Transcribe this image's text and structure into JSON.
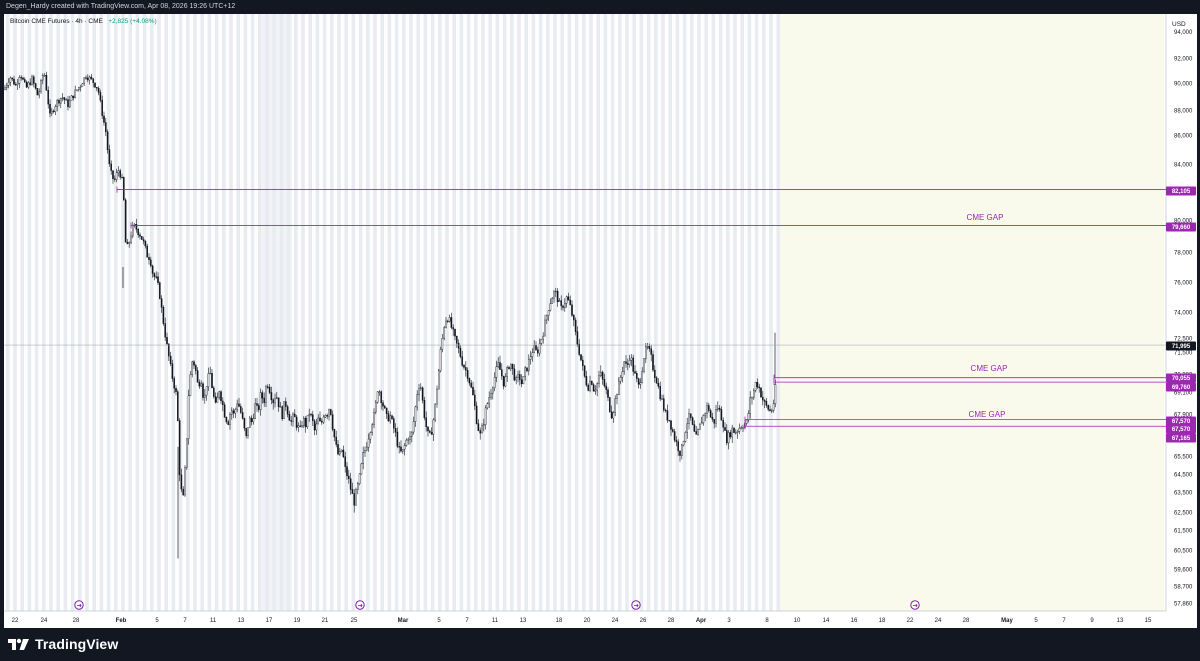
{
  "header": {
    "attribution": "Degen_Hardy created with TradingView.com, Apr 08, 2026 19:26 UTC+12"
  },
  "legend": {
    "symbol": "Bitcoin CME Futures · 4h · CME",
    "change": "+2,825 (+4.08%)"
  },
  "footer": {
    "brand": "TradingView",
    "logo_icon": "tradingview-logo-icon"
  },
  "colors": {
    "up": "#089981",
    "line": "#9c27b0",
    "label_bg": "#9c27b0",
    "label_text": "#ffffff",
    "price_label_bg": "#131722",
    "session_band": "#e8ebf0",
    "future_area": "#f9f9ec"
  },
  "chart_data": {
    "type": "candlestick",
    "title": "Bitcoin CME Futures · 4h · CME",
    "currency_label": "USD",
    "y_ticks": [
      "92,000",
      "90,000",
      "88,000",
      "86,000",
      "84,000",
      "82,000",
      "80,000",
      "78,000",
      "76,000",
      "74,000",
      "72,500",
      "71,500",
      "70,300",
      "69,100",
      "67,900",
      "66,700",
      "65,500",
      "64,500",
      "63,500",
      "62,500",
      "61,500",
      "60,500",
      "59,600",
      "58,700",
      "57,860"
    ],
    "y_top_partial_tick": "94,000",
    "x_ticks": [
      "22",
      "24",
      "28",
      "Feb",
      "5",
      "7",
      "11",
      "13",
      "17",
      "19",
      "21",
      "25",
      "Mar",
      "5",
      "7",
      "11",
      "13",
      "18",
      "20",
      "24",
      "26",
      "28",
      "Apr",
      "3",
      "8",
      "10",
      "14",
      "16",
      "18",
      "22",
      "24",
      "28",
      "May",
      "5",
      "7",
      "9",
      "13",
      "15"
    ],
    "current_price": "71,995",
    "levels": [
      {
        "price": "82,105",
        "start": "Jan 31"
      },
      {
        "price": "79,660",
        "start": "Feb 2"
      },
      {
        "price": "70,055",
        "start": "Apr 8"
      },
      {
        "price": "69,760",
        "start": "Apr 8"
      },
      {
        "price": "67,570",
        "start": "Apr 5"
      },
      {
        "price": "67,165",
        "start": "Apr 5"
      }
    ],
    "price_labels": [
      "82,105",
      "79,660",
      "71,995",
      "70,055",
      "69,760",
      "67,570",
      "67,570",
      "67,165"
    ],
    "annotations": [
      "CME GAP",
      "CME GAP",
      "CME GAP"
    ],
    "event_markers": 4,
    "price_path": [
      [
        0,
        89500
      ],
      [
        6,
        90500
      ],
      [
        12,
        89800
      ],
      [
        16,
        90800
      ],
      [
        22,
        89600
      ],
      [
        28,
        90300
      ],
      [
        34,
        89000
      ],
      [
        40,
        91000
      ],
      [
        46,
        87500
      ],
      [
        52,
        88500
      ],
      [
        58,
        89000
      ],
      [
        64,
        88400
      ],
      [
        70,
        89200
      ],
      [
        76,
        89800
      ],
      [
        82,
        90600
      ],
      [
        88,
        90200
      ],
      [
        94,
        89600
      ],
      [
        98,
        87800
      ],
      [
        102,
        86200
      ],
      [
        105,
        84000
      ],
      [
        108,
        83000
      ],
      [
        111,
        82800
      ],
      [
        114,
        83600
      ],
      [
        116,
        83300
      ],
      [
        119,
        82500
      ],
      [
        122,
        78000
      ],
      [
        125,
        78600
      ],
      [
        128,
        79400
      ],
      [
        131,
        79600
      ],
      [
        134,
        79300
      ],
      [
        137,
        79000
      ],
      [
        140,
        78500
      ],
      [
        143,
        77800
      ],
      [
        146,
        77600
      ],
      [
        149,
        76500
      ],
      [
        152,
        76200
      ],
      [
        155,
        75500
      ],
      [
        158,
        74000
      ],
      [
        161,
        72800
      ],
      [
        164,
        71500
      ],
      [
        167,
        70500
      ],
      [
        170,
        69600
      ],
      [
        173,
        68700
      ],
      [
        176,
        64000
      ],
      [
        179,
        63000
      ],
      [
        182,
        65500
      ],
      [
        185,
        69500
      ],
      [
        188,
        71000
      ],
      [
        191,
        70800
      ],
      [
        194,
        69500
      ],
      [
        197,
        70000
      ],
      [
        200,
        68500
      ],
      [
        203,
        69800
      ],
      [
        206,
        70400
      ],
      [
        209,
        69000
      ],
      [
        212,
        68200
      ],
      [
        215,
        69300
      ],
      [
        218,
        68600
      ],
      [
        221,
        67800
      ],
      [
        224,
        67400
      ],
      [
        227,
        68200
      ],
      [
        230,
        67800
      ],
      [
        233,
        68600
      ],
      [
        236,
        68200
      ],
      [
        239,
        67400
      ],
      [
        242,
        66400
      ],
      [
        245,
        67600
      ],
      [
        248,
        67400
      ],
      [
        251,
        68400
      ],
      [
        254,
        68000
      ],
      [
        257,
        69000
      ],
      [
        260,
        68600
      ],
      [
        263,
        69800
      ],
      [
        266,
        69200
      ],
      [
        269,
        68600
      ],
      [
        272,
        69000
      ],
      [
        275,
        68400
      ],
      [
        278,
        67800
      ],
      [
        281,
        68600
      ],
      [
        284,
        68000
      ],
      [
        287,
        67400
      ],
      [
        290,
        67800
      ],
      [
        293,
        67200
      ],
      [
        296,
        66900
      ],
      [
        299,
        67600
      ],
      [
        302,
        67200
      ],
      [
        305,
        68000
      ],
      [
        308,
        67600
      ],
      [
        311,
        66800
      ],
      [
        314,
        67600
      ],
      [
        317,
        67200
      ],
      [
        320,
        68000
      ],
      [
        323,
        67900
      ],
      [
        326,
        68400
      ],
      [
        329,
        67000
      ],
      [
        332,
        66000
      ],
      [
        335,
        65400
      ],
      [
        338,
        65900
      ],
      [
        341,
        64800
      ],
      [
        344,
        64300
      ],
      [
        347,
        63600
      ],
      [
        350,
        63000
      ],
      [
        353,
        63600
      ],
      [
        356,
        64400
      ],
      [
        359,
        65500
      ],
      [
        362,
        66000
      ],
      [
        365,
        66700
      ],
      [
        368,
        67400
      ],
      [
        371,
        68000
      ],
      [
        374,
        69500
      ],
      [
        377,
        68800
      ],
      [
        380,
        68200
      ],
      [
        383,
        67600
      ],
      [
        386,
        67800
      ],
      [
        389,
        67200
      ],
      [
        392,
        66600
      ],
      [
        395,
        65800
      ],
      [
        398,
        65600
      ],
      [
        401,
        66100
      ],
      [
        404,
        66600
      ],
      [
        407,
        66400
      ],
      [
        410,
        67600
      ],
      [
        413,
        69000
      ],
      [
        416,
        69800
      ],
      [
        419,
        68400
      ],
      [
        422,
        67200
      ],
      [
        425,
        66400
      ],
      [
        428,
        67000
      ],
      [
        431,
        68200
      ],
      [
        434,
        70000
      ],
      [
        437,
        71800
      ],
      [
        440,
        73200
      ],
      [
        443,
        73800
      ],
      [
        446,
        73400
      ],
      [
        449,
        72800
      ],
      [
        452,
        72200
      ],
      [
        455,
        71600
      ],
      [
        458,
        71000
      ],
      [
        461,
        70600
      ],
      [
        464,
        70200
      ],
      [
        467,
        69400
      ],
      [
        470,
        68600
      ],
      [
        473,
        67400
      ],
      [
        476,
        66600
      ],
      [
        479,
        67200
      ],
      [
        482,
        68200
      ],
      [
        485,
        68800
      ],
      [
        488,
        69400
      ],
      [
        491,
        70200
      ],
      [
        494,
        70800
      ],
      [
        497,
        70400
      ],
      [
        500,
        69600
      ],
      [
        503,
        70400
      ],
      [
        506,
        71000
      ],
      [
        509,
        70400
      ],
      [
        512,
        69800
      ],
      [
        515,
        70200
      ],
      [
        518,
        69600
      ],
      [
        521,
        70400
      ],
      [
        524,
        70800
      ],
      [
        527,
        71400
      ],
      [
        530,
        71800
      ],
      [
        533,
        71400
      ],
      [
        536,
        72200
      ],
      [
        539,
        72800
      ],
      [
        542,
        73600
      ],
      [
        545,
        74400
      ],
      [
        548,
        75000
      ],
      [
        551,
        75400
      ],
      [
        554,
        74800
      ],
      [
        557,
        74200
      ],
      [
        560,
        74600
      ],
      [
        563,
        75000
      ],
      [
        566,
        74400
      ],
      [
        569,
        73600
      ],
      [
        572,
        72600
      ],
      [
        575,
        71600
      ],
      [
        578,
        70800
      ],
      [
        581,
        70000
      ],
      [
        584,
        69400
      ],
      [
        587,
        70000
      ],
      [
        590,
        69200
      ],
      [
        593,
        69600
      ],
      [
        596,
        70400
      ],
      [
        599,
        69800
      ],
      [
        602,
        69200
      ],
      [
        605,
        68400
      ],
      [
        608,
        67800
      ],
      [
        611,
        68600
      ],
      [
        614,
        69400
      ],
      [
        617,
        70200
      ],
      [
        620,
        71000
      ],
      [
        623,
        70600
      ],
      [
        626,
        71400
      ],
      [
        629,
        70600
      ],
      [
        632,
        70000
      ],
      [
        635,
        69400
      ],
      [
        638,
        70600
      ],
      [
        641,
        71600
      ],
      [
        644,
        71800
      ],
      [
        647,
        71200
      ],
      [
        650,
        70400
      ],
      [
        653,
        69800
      ],
      [
        656,
        69000
      ],
      [
        659,
        68400
      ],
      [
        662,
        67800
      ],
      [
        665,
        67600
      ],
      [
        668,
        67000
      ],
      [
        671,
        66400
      ],
      [
        674,
        66000
      ],
      [
        677,
        65600
      ],
      [
        680,
        66600
      ],
      [
        683,
        67400
      ],
      [
        686,
        67800
      ],
      [
        689,
        67000
      ],
      [
        692,
        66400
      ],
      [
        695,
        67000
      ],
      [
        698,
        67600
      ],
      [
        701,
        68000
      ],
      [
        704,
        68400
      ],
      [
        707,
        67600
      ],
      [
        710,
        67400
      ],
      [
        713,
        68400
      ],
      [
        716,
        68000
      ],
      [
        719,
        67400
      ],
      [
        722,
        66400
      ],
      [
        725,
        66600
      ],
      [
        728,
        67000
      ],
      [
        731,
        66800
      ],
      [
        734,
        67000
      ],
      [
        737,
        67200
      ],
      [
        740,
        67300
      ],
      [
        743,
        67400
      ],
      [
        746,
        68600
      ],
      [
        749,
        69000
      ],
      [
        752,
        69800
      ],
      [
        755,
        69400
      ],
      [
        758,
        68800
      ],
      [
        761,
        68400
      ],
      [
        764,
        68200
      ],
      [
        767,
        68000
      ],
      [
        770,
        68600
      ],
      [
        773,
        70200
      ],
      [
        776,
        71800
      ],
      [
        779,
        72000
      ]
    ]
  }
}
